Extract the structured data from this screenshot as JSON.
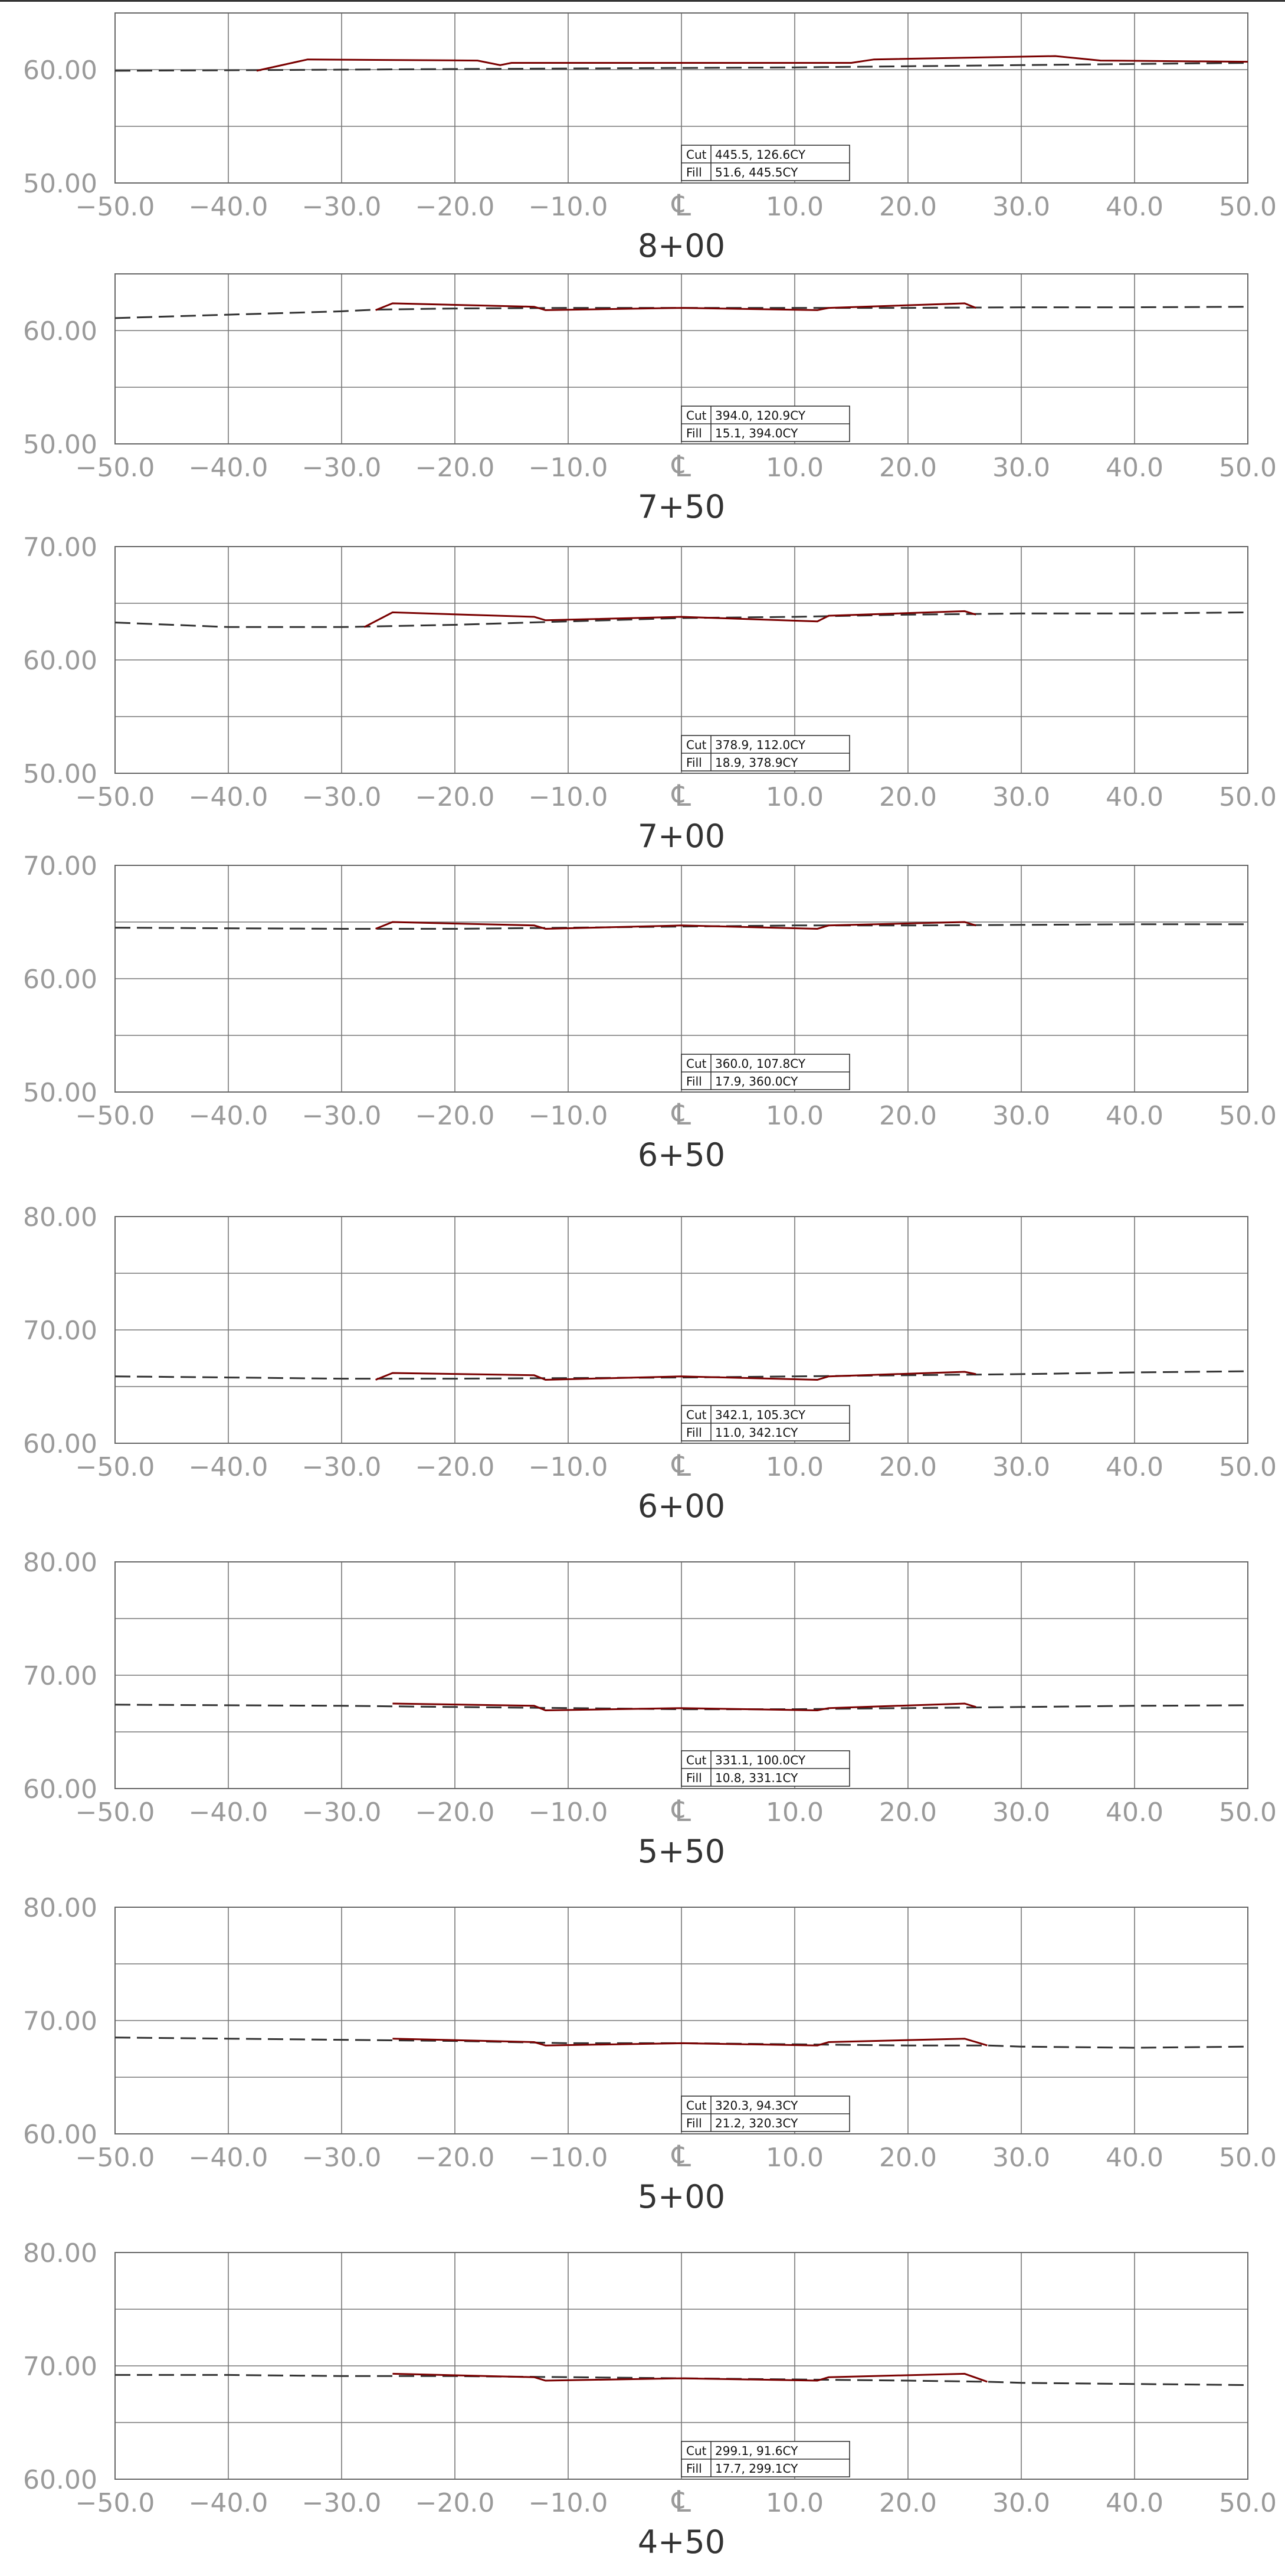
{
  "sheet": {
    "cl_symbol": "℄",
    "x_ticks": [
      "−50.0",
      "−40.0",
      "−30.0",
      "−20.0",
      "−10.0",
      "℄",
      "10.0",
      "20.0",
      "30.0",
      "40.0",
      "50.0"
    ]
  },
  "chart_data": [
    {
      "type": "line",
      "station": "8+00",
      "x_label": "",
      "y_label": "",
      "xlim": [
        -50,
        50
      ],
      "ylim": [
        50,
        65
      ],
      "y_gridlines": [
        55,
        60,
        65
      ],
      "y_tick_labels": [
        {
          "value": 50,
          "label": "50.00"
        },
        {
          "value": 60,
          "label": "60.00"
        }
      ],
      "volumes": {
        "cut_label": "Cut",
        "cut_value": "445.5, 126.6CY",
        "fill_label": "Fill",
        "fill_value": "51.6, 445.5CY"
      },
      "series": [
        {
          "kind": "existing-ground",
          "x": [
            -50,
            -40,
            -30,
            -20,
            -10,
            0,
            10,
            20,
            30,
            40,
            50
          ],
          "y": [
            59.9,
            59.95,
            60.0,
            60.05,
            60.1,
            60.15,
            60.2,
            60.3,
            60.4,
            60.5,
            60.6
          ]
        },
        {
          "kind": "proposed-section",
          "x": [
            -37.5,
            -33,
            -18,
            -16,
            -15,
            15,
            17,
            33,
            37,
            50
          ],
          "y": [
            59.9,
            60.9,
            60.8,
            60.4,
            60.6,
            60.6,
            60.9,
            61.2,
            60.8,
            60.7
          ]
        }
      ]
    },
    {
      "type": "line",
      "station": "7+50",
      "x_label": "",
      "y_label": "",
      "xlim": [
        -50,
        50
      ],
      "ylim": [
        50,
        65
      ],
      "y_gridlines": [
        55,
        60,
        65
      ],
      "y_tick_labels": [
        {
          "value": 50,
          "label": "50.00"
        },
        {
          "value": 60,
          "label": "60.00"
        }
      ],
      "volumes": {
        "cut_label": "Cut",
        "cut_value": "394.0, 120.9CY",
        "fill_label": "Fill",
        "fill_value": "15.1, 394.0CY"
      },
      "series": [
        {
          "kind": "existing-ground",
          "x": [
            -50,
            -40,
            -30,
            -27,
            -20,
            -10,
            0,
            10,
            20,
            30,
            40,
            50
          ],
          "y": [
            61.1,
            61.4,
            61.7,
            61.85,
            61.95,
            62.0,
            62.0,
            62.0,
            62.0,
            62.05,
            62.05,
            62.1
          ]
        },
        {
          "kind": "proposed-section",
          "x": [
            -27,
            -25.5,
            -13,
            -12,
            0,
            12,
            13,
            25,
            26
          ],
          "y": [
            61.8,
            62.4,
            62.1,
            61.8,
            62.0,
            61.8,
            62.0,
            62.4,
            62.0
          ]
        }
      ]
    },
    {
      "type": "line",
      "station": "7+00",
      "x_label": "",
      "y_label": "",
      "xlim": [
        -50,
        50
      ],
      "ylim": [
        50,
        70
      ],
      "y_gridlines": [
        55,
        60,
        65,
        70
      ],
      "y_tick_labels": [
        {
          "value": 50,
          "label": "50.00"
        },
        {
          "value": 60,
          "label": "60.00"
        },
        {
          "value": 70,
          "label": "70.00"
        }
      ],
      "volumes": {
        "cut_label": "Cut",
        "cut_value": "378.9, 112.0CY",
        "fill_label": "Fill",
        "fill_value": "18.9, 378.9CY"
      },
      "series": [
        {
          "kind": "existing-ground",
          "x": [
            -50,
            -40,
            -30,
            -20,
            -10,
            0,
            10,
            20,
            30,
            40,
            50
          ],
          "y": [
            63.3,
            62.9,
            62.9,
            63.1,
            63.4,
            63.7,
            63.8,
            64.0,
            64.1,
            64.1,
            64.2
          ]
        },
        {
          "kind": "proposed-section",
          "x": [
            -28,
            -25.5,
            -13,
            -12,
            0,
            12,
            13,
            25,
            26
          ],
          "y": [
            62.9,
            64.2,
            63.8,
            63.5,
            63.8,
            63.4,
            63.9,
            64.3,
            64.0
          ]
        }
      ]
    },
    {
      "type": "line",
      "station": "6+50",
      "x_label": "",
      "y_label": "",
      "xlim": [
        -50,
        50
      ],
      "ylim": [
        50,
        70
      ],
      "y_gridlines": [
        55,
        60,
        65,
        70
      ],
      "y_tick_labels": [
        {
          "value": 50,
          "label": "50.00"
        },
        {
          "value": 60,
          "label": "60.00"
        },
        {
          "value": 70,
          "label": "70.00"
        }
      ],
      "volumes": {
        "cut_label": "Cut",
        "cut_value": "360.0, 107.8CY",
        "fill_label": "Fill",
        "fill_value": "17.9, 360.0CY"
      },
      "series": [
        {
          "kind": "existing-ground",
          "x": [
            -50,
            -40,
            -30,
            -20,
            -10,
            0,
            10,
            20,
            30,
            40,
            50
          ],
          "y": [
            64.5,
            64.45,
            64.4,
            64.4,
            64.5,
            64.6,
            64.7,
            64.7,
            64.75,
            64.8,
            64.8
          ]
        },
        {
          "kind": "proposed-section",
          "x": [
            -27,
            -25.5,
            -13,
            -12,
            0,
            12,
            13,
            25,
            26
          ],
          "y": [
            64.4,
            65.0,
            64.7,
            64.4,
            64.7,
            64.4,
            64.7,
            65.0,
            64.7
          ]
        }
      ]
    },
    {
      "type": "line",
      "station": "6+00",
      "x_label": "",
      "y_label": "",
      "xlim": [
        -50,
        50
      ],
      "ylim": [
        60,
        80
      ],
      "y_gridlines": [
        65,
        70,
        75,
        80
      ],
      "y_tick_labels": [
        {
          "value": 60,
          "label": "60.00"
        },
        {
          "value": 70,
          "label": "70.00"
        },
        {
          "value": 80,
          "label": "80.00"
        }
      ],
      "volumes": {
        "cut_label": "Cut",
        "cut_value": "342.1, 105.3CY",
        "fill_label": "Fill",
        "fill_value": "11.0, 342.1CY"
      },
      "series": [
        {
          "kind": "existing-ground",
          "x": [
            -50,
            -40,
            -30,
            -20,
            -10,
            0,
            10,
            20,
            30,
            40,
            50
          ],
          "y": [
            65.9,
            65.8,
            65.7,
            65.7,
            65.75,
            65.8,
            65.9,
            66.0,
            66.1,
            66.25,
            66.35
          ]
        },
        {
          "kind": "proposed-section",
          "x": [
            -27,
            -25.5,
            -13,
            -12,
            0,
            12,
            13,
            25,
            26
          ],
          "y": [
            65.6,
            66.2,
            66.0,
            65.6,
            65.9,
            65.6,
            65.9,
            66.3,
            66.1
          ]
        }
      ]
    },
    {
      "type": "line",
      "station": "5+50",
      "x_label": "",
      "y_label": "",
      "xlim": [
        -50,
        50
      ],
      "ylim": [
        60,
        80
      ],
      "y_gridlines": [
        65,
        70,
        75,
        80
      ],
      "y_tick_labels": [
        {
          "value": 60,
          "label": "60.00"
        },
        {
          "value": 70,
          "label": "70.00"
        },
        {
          "value": 80,
          "label": "80.00"
        }
      ],
      "volumes": {
        "cut_label": "Cut",
        "cut_value": "331.1, 100.0CY",
        "fill_label": "Fill",
        "fill_value": "10.8, 331.1CY"
      },
      "series": [
        {
          "kind": "existing-ground",
          "x": [
            -50,
            -40,
            -30,
            -20,
            -10,
            0,
            10,
            20,
            30,
            40,
            50
          ],
          "y": [
            67.4,
            67.35,
            67.3,
            67.2,
            67.1,
            67.0,
            67.0,
            67.1,
            67.2,
            67.3,
            67.35
          ]
        },
        {
          "kind": "proposed-section",
          "x": [
            -25.5,
            -13,
            -12,
            0,
            12,
            13,
            25,
            26
          ],
          "y": [
            67.5,
            67.3,
            66.9,
            67.1,
            66.9,
            67.1,
            67.5,
            67.2
          ]
        }
      ]
    },
    {
      "type": "line",
      "station": "5+00",
      "x_label": "",
      "y_label": "",
      "xlim": [
        -50,
        50
      ],
      "ylim": [
        60,
        80
      ],
      "y_gridlines": [
        65,
        70,
        75,
        80
      ],
      "y_tick_labels": [
        {
          "value": 60,
          "label": "60.00"
        },
        {
          "value": 70,
          "label": "70.00"
        },
        {
          "value": 80,
          "label": "80.00"
        }
      ],
      "volumes": {
        "cut_label": "Cut",
        "cut_value": "320.3, 94.3CY",
        "fill_label": "Fill",
        "fill_value": "21.2, 320.3CY"
      },
      "series": [
        {
          "kind": "existing-ground",
          "x": [
            -50,
            -40,
            -30,
            -20,
            -10,
            0,
            10,
            20,
            27,
            30,
            40,
            50
          ],
          "y": [
            68.5,
            68.4,
            68.3,
            68.2,
            68.0,
            68.0,
            67.9,
            67.8,
            67.8,
            67.7,
            67.6,
            67.7
          ]
        },
        {
          "kind": "proposed-section",
          "x": [
            -25.5,
            -13,
            -12,
            0,
            12,
            13,
            25,
            27
          ],
          "y": [
            68.4,
            68.1,
            67.8,
            68.0,
            67.8,
            68.1,
            68.4,
            67.8
          ]
        }
      ]
    },
    {
      "type": "line",
      "station": "4+50",
      "x_label": "",
      "y_label": "",
      "xlim": [
        -50,
        50
      ],
      "ylim": [
        60,
        80
      ],
      "y_gridlines": [
        65,
        70,
        75,
        80
      ],
      "y_tick_labels": [
        {
          "value": 60,
          "label": "60.00"
        },
        {
          "value": 70,
          "label": "70.00"
        },
        {
          "value": 80,
          "label": "80.00"
        }
      ],
      "volumes": {
        "cut_label": "Cut",
        "cut_value": "299.1, 91.6CY",
        "fill_label": "Fill",
        "fill_value": "17.7, 299.1CY"
      },
      "series": [
        {
          "kind": "existing-ground",
          "x": [
            -50,
            -40,
            -30,
            -20,
            -10,
            0,
            10,
            20,
            27,
            30,
            40,
            50
          ],
          "y": [
            69.2,
            69.2,
            69.1,
            69.1,
            69.0,
            68.9,
            68.8,
            68.7,
            68.6,
            68.5,
            68.4,
            68.3
          ]
        },
        {
          "kind": "proposed-section",
          "x": [
            -25.5,
            -13,
            -12,
            0,
            12,
            13,
            25,
            27
          ],
          "y": [
            69.3,
            69.0,
            68.7,
            68.9,
            68.7,
            69.0,
            69.3,
            68.6
          ]
        }
      ]
    }
  ]
}
